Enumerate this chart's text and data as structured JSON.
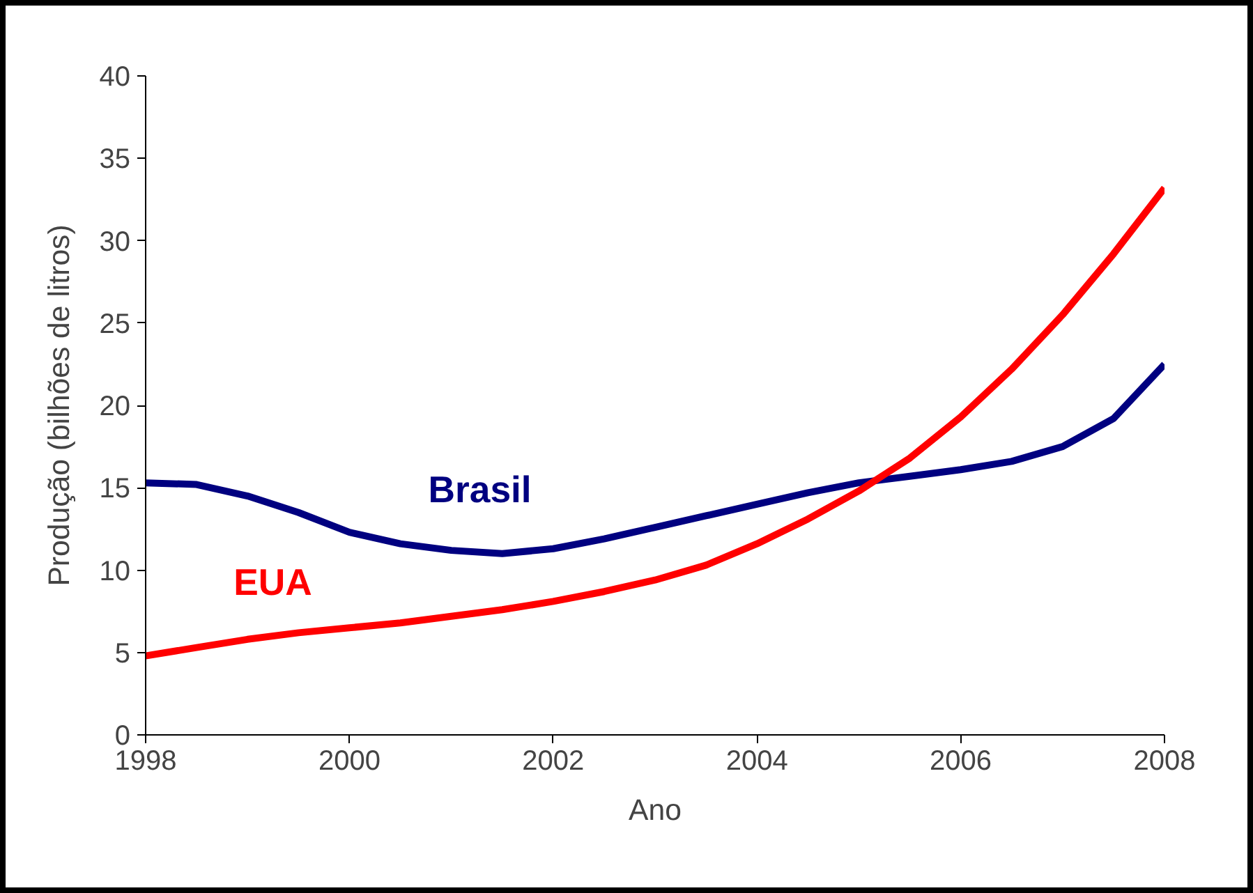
{
  "chart_data": {
    "type": "line",
    "xlabel": "Ano",
    "ylabel": "Produção (bilhões de litros)",
    "x": [
      1998,
      1998.5,
      1999,
      1999.5,
      2000,
      2000.5,
      2001,
      2001.5,
      2002,
      2002.5,
      2003,
      2003.5,
      2004,
      2004.5,
      2005,
      2005.5,
      2006,
      2006.5,
      2007,
      2007.5,
      2008
    ],
    "series": [
      {
        "name": "Brasil",
        "color": "#000080",
        "values": [
          15.3,
          15.2,
          14.5,
          13.5,
          12.3,
          11.6,
          11.2,
          11.0,
          11.3,
          11.9,
          12.6,
          13.3,
          14.0,
          14.7,
          15.3,
          15.7,
          16.1,
          16.6,
          17.5,
          19.2,
          22.5
        ]
      },
      {
        "name": "EUA",
        "color": "#ff0000",
        "values": [
          4.8,
          5.3,
          5.8,
          6.2,
          6.5,
          6.8,
          7.2,
          7.6,
          8.1,
          8.7,
          9.4,
          10.3,
          11.6,
          13.1,
          14.8,
          16.8,
          19.3,
          22.2,
          25.5,
          29.2,
          33.2
        ]
      }
    ],
    "xlim": [
      1998,
      2008
    ],
    "xticks": [
      1998,
      2000,
      2002,
      2004,
      2006,
      2008
    ],
    "ylim": [
      0,
      40
    ],
    "yticks": [
      0,
      5,
      10,
      15,
      20,
      25,
      30,
      35,
      40
    ],
    "grid": false,
    "marker": "none",
    "line_style": "solid"
  }
}
